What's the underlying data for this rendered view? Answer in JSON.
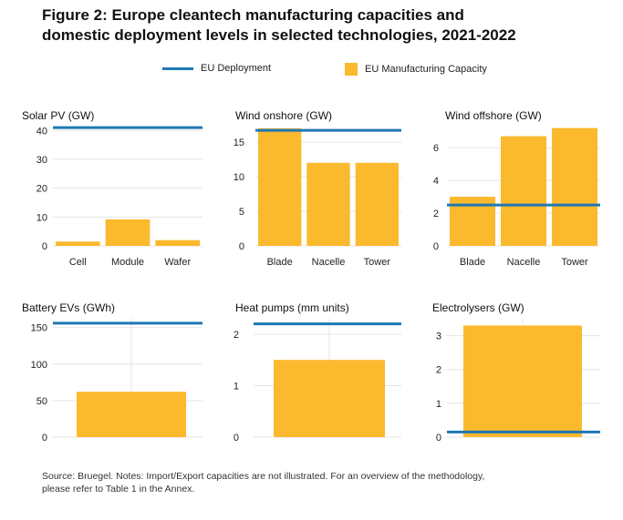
{
  "figure": {
    "title_line1": "Figure 2: Europe cleantech manufacturing capacities and",
    "title_line2": "domestic deployment levels in selected technologies, 2021-2022"
  },
  "legend": {
    "deployment_label": "EU Deployment",
    "capacity_label": "EU Manufacturing Capacity"
  },
  "colors": {
    "deployment": "#1f77b4",
    "capacity": "#fbb92d",
    "grid": "#e4e4e4",
    "axis_text": "#222222"
  },
  "chart_data": [
    {
      "type": "bar",
      "title": "Solar PV (GW)",
      "categories": [
        "Cell",
        "Module",
        "Wafer"
      ],
      "series": [
        {
          "name": "EU Manufacturing Capacity",
          "values": [
            1.5,
            9.2,
            2
          ]
        }
      ],
      "deployment": 41,
      "ylim": [
        0,
        42
      ],
      "yticks": [
        0,
        10,
        20,
        30,
        40
      ]
    },
    {
      "type": "bar",
      "title": "Wind onshore (GW)",
      "categories": [
        "Blade",
        "Nacelle",
        "Tower"
      ],
      "series": [
        {
          "name": "EU Manufacturing Capacity",
          "values": [
            17,
            12,
            12
          ]
        }
      ],
      "deployment": 16.7,
      "ylim": [
        0,
        17.5
      ],
      "yticks": [
        0,
        5,
        10,
        15
      ]
    },
    {
      "type": "bar",
      "title": "Wind offshore (GW)",
      "categories": [
        "Blade",
        "Nacelle",
        "Tower"
      ],
      "series": [
        {
          "name": "EU Manufacturing Capacity",
          "values": [
            3,
            6.7,
            7.2
          ]
        }
      ],
      "deployment": 2.5,
      "ylim": [
        0,
        7.4
      ],
      "yticks": [
        0,
        2,
        4,
        6
      ]
    },
    {
      "type": "bar",
      "title": "Battery EVs (GWh)",
      "categories": [
        ""
      ],
      "series": [
        {
          "name": "EU Manufacturing Capacity",
          "values": [
            62
          ]
        }
      ],
      "deployment": 156,
      "ylim": [
        0,
        162
      ],
      "yticks": [
        0,
        50,
        100,
        150
      ]
    },
    {
      "type": "bar",
      "title": "Heat pumps (mm units)",
      "categories": [
        ""
      ],
      "series": [
        {
          "name": "EU Manufacturing Capacity",
          "values": [
            1.5
          ]
        }
      ],
      "deployment": 2.2,
      "ylim": [
        0,
        2.3
      ],
      "yticks": [
        0,
        1,
        2
      ]
    },
    {
      "type": "bar",
      "title": "Electrolysers (GW)",
      "categories": [
        ""
      ],
      "series": [
        {
          "name": "EU Manufacturing Capacity",
          "values": [
            3.3
          ]
        }
      ],
      "deployment": 0.15,
      "ylim": [
        0,
        3.5
      ],
      "yticks": [
        0,
        1,
        2,
        3
      ]
    }
  ],
  "footnote": {
    "line1": "Source: Bruegel. Notes: Import/Export capacities are not illustrated. For an overview of the methodology,",
    "line2": "please refer to Table 1 in the Annex."
  }
}
